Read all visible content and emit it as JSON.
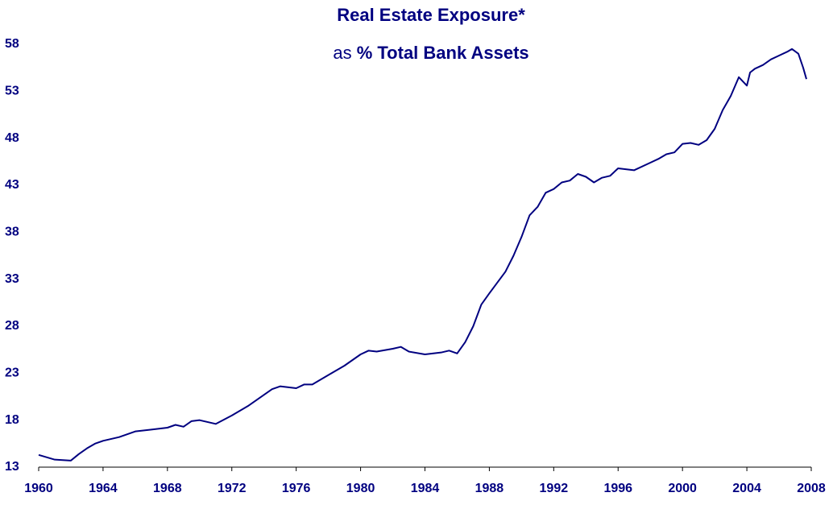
{
  "chart_data": {
    "type": "line",
    "title": "Real Estate Exposure*",
    "subtitle": [
      "as",
      "% Total Bank Assets"
    ],
    "color": "#000080",
    "x": [
      1960,
      1961,
      1962,
      1962.5,
      1963,
      1963.5,
      1964,
      1965,
      1966,
      1967,
      1968,
      1968.5,
      1969,
      1969.5,
      1970,
      1971,
      1972,
      1972.5,
      1973,
      1974,
      1974.5,
      1975,
      1976,
      1976.5,
      1977,
      1978,
      1979,
      1980,
      1980.5,
      1981,
      1982,
      1982.5,
      1983,
      1984,
      1985,
      1985.5,
      1986,
      1986.5,
      1987,
      1987.5,
      1988,
      1989,
      1989.5,
      1990,
      1990.5,
      1991,
      1991.5,
      1992,
      1992.5,
      1993,
      1993.5,
      1994,
      1994.5,
      1995,
      1995.5,
      1996,
      1997,
      1998,
      1998.5,
      1999,
      1999.5,
      2000,
      2000.5,
      2001,
      2001.5,
      2002,
      2002.5,
      2003,
      2003.5,
      2004,
      2004.2,
      2004.5,
      2005,
      2005.5,
      2006,
      2006.5,
      2006.8,
      2007.2,
      2007.5,
      2007.7
    ],
    "values": [
      14.3,
      13.8,
      13.7,
      14.4,
      15.0,
      15.5,
      15.8,
      16.2,
      16.8,
      17.0,
      17.2,
      17.5,
      17.3,
      17.9,
      18.0,
      17.6,
      18.5,
      19.0,
      19.5,
      20.7,
      21.3,
      21.6,
      21.4,
      21.8,
      21.8,
      22.8,
      23.8,
      25.0,
      25.4,
      25.3,
      25.6,
      25.8,
      25.3,
      25.0,
      25.2,
      25.4,
      25.1,
      26.3,
      28.0,
      30.3,
      31.5,
      33.8,
      35.5,
      37.5,
      39.8,
      40.7,
      42.2,
      42.6,
      43.3,
      43.5,
      44.2,
      43.9,
      43.3,
      43.8,
      44.0,
      44.8,
      44.6,
      45.4,
      45.8,
      46.3,
      46.5,
      47.4,
      47.5,
      47.3,
      47.8,
      49.0,
      51.0,
      52.5,
      54.5,
      53.6,
      55.0,
      55.4,
      55.8,
      56.4,
      56.8,
      57.2,
      57.5,
      57.0,
      55.5,
      54.3
    ],
    "xlim": [
      1960,
      2008
    ],
    "xticks": [
      1960,
      1964,
      1968,
      1972,
      1976,
      1980,
      1984,
      1988,
      1992,
      1996,
      2000,
      2004,
      2008
    ],
    "ylim": [
      13,
      58
    ],
    "yticks": [
      13,
      18,
      23,
      28,
      33,
      38,
      43,
      48,
      53,
      58
    ],
    "grid": false
  }
}
